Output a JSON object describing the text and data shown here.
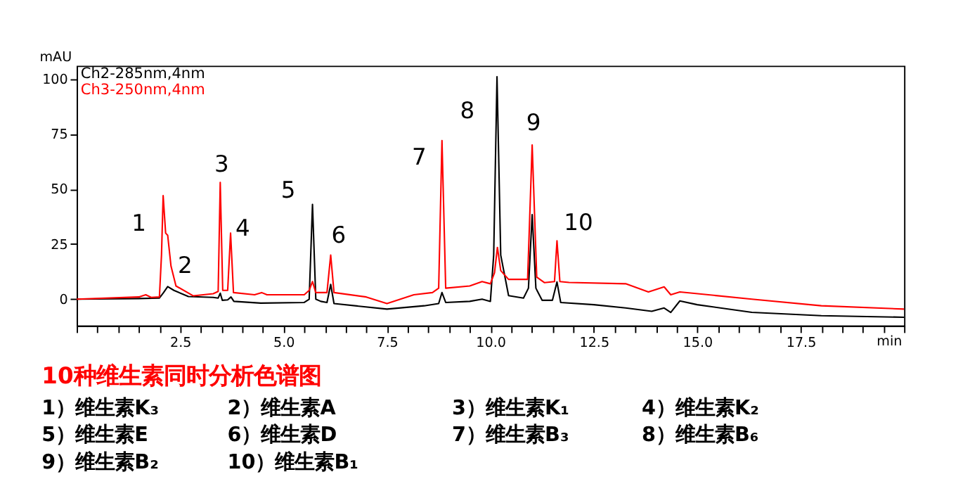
{
  "chart_data": {
    "type": "line",
    "title": "10种维生素同时分析色谱图",
    "xlabel": "min",
    "ylabel": "mAU",
    "xlim": [
      0,
      20
    ],
    "ylim": [
      -12,
      106
    ],
    "xticks": [
      {
        "value": 0,
        "label": null
      },
      {
        "value": 0.5,
        "label": null
      },
      {
        "value": 1,
        "label": null
      },
      {
        "value": 1.5,
        "label": null
      },
      {
        "value": 2,
        "label": null
      },
      {
        "value": 2.5,
        "label": "2.5"
      },
      {
        "value": 3,
        "label": null
      },
      {
        "value": 3.5,
        "label": null
      },
      {
        "value": 4,
        "label": null
      },
      {
        "value": 4.5,
        "label": null
      },
      {
        "value": 5,
        "label": "5.0"
      },
      {
        "value": 5.5,
        "label": null
      },
      {
        "value": 6,
        "label": null
      },
      {
        "value": 6.5,
        "label": null
      },
      {
        "value": 7,
        "label": null
      },
      {
        "value": 7.5,
        "label": "7.5"
      },
      {
        "value": 8,
        "label": null
      },
      {
        "value": 8.5,
        "label": null
      },
      {
        "value": 9,
        "label": null
      },
      {
        "value": 9.5,
        "label": null
      },
      {
        "value": 10,
        "label": "10.0"
      },
      {
        "value": 10.5,
        "label": null
      },
      {
        "value": 11,
        "label": null
      },
      {
        "value": 11.5,
        "label": null
      },
      {
        "value": 12,
        "label": null
      },
      {
        "value": 12.5,
        "label": "12.5"
      },
      {
        "value": 13,
        "label": null
      },
      {
        "value": 13.5,
        "label": null
      },
      {
        "value": 14,
        "label": null
      },
      {
        "value": 14.5,
        "label": null
      },
      {
        "value": 15,
        "label": "15.0"
      },
      {
        "value": 15.5,
        "label": null
      },
      {
        "value": 16,
        "label": null
      },
      {
        "value": 16.5,
        "label": null
      },
      {
        "value": 17,
        "label": null
      },
      {
        "value": 17.5,
        "label": "17.5"
      },
      {
        "value": 18,
        "label": null
      },
      {
        "value": 18.5,
        "label": null
      },
      {
        "value": 19,
        "label": null
      },
      {
        "value": 19.5,
        "label": null
      },
      {
        "value": 20,
        "label": null
      }
    ],
    "yticks": [
      0,
      25,
      50,
      75,
      100
    ],
    "grid": false,
    "legend": "top left",
    "marker": "none",
    "line_style": "solid",
    "series": [
      {
        "name": "Ch2-285nm,4nm",
        "color": "#000000",
        "x": [
          0,
          1.5,
          2.0,
          2.1,
          2.2,
          2.35,
          2.7,
          3.3,
          3.42,
          3.47,
          3.52,
          3.65,
          3.73,
          3.8,
          4.45,
          5.5,
          5.62,
          5.7,
          5.78,
          5.9,
          6.05,
          6.14,
          6.22,
          7.5,
          8.4,
          8.75,
          8.83,
          8.92,
          9.5,
          9.8,
          10.0,
          10.08,
          10.16,
          10.25,
          10.44,
          10.8,
          10.92,
          11.01,
          11.1,
          11.25,
          11.5,
          11.61,
          11.7,
          12.5,
          13.27,
          13.9,
          14.2,
          14.36,
          14.58,
          15.0,
          16.32,
          18,
          20
        ],
        "values": [
          0,
          0.3,
          0.5,
          3,
          5.7,
          4,
          1.2,
          0.8,
          0.5,
          2.7,
          -0.5,
          -0.3,
          1,
          -1,
          -1.8,
          -1.5,
          0,
          43,
          0,
          -1,
          -1.5,
          6.7,
          -2,
          -4.5,
          -3,
          -2,
          3,
          -1.5,
          -1,
          0,
          -1,
          20,
          101,
          20,
          1.6,
          0.5,
          5,
          38.4,
          5,
          -0.5,
          -0.5,
          7.8,
          -1.5,
          -2.5,
          -4,
          -5.5,
          -4,
          -6,
          -0.8,
          -2.5,
          -6,
          -7.5,
          -8.2
        ]
      },
      {
        "name": "Ch3-250nm,4nm",
        "color": "#ff0000",
        "x": [
          0,
          1.5,
          1.67,
          1.8,
          2.0,
          2.05,
          2.09,
          2.15,
          2.2,
          2.28,
          2.4,
          2.82,
          3.3,
          3.42,
          3.47,
          3.53,
          3.65,
          3.72,
          3.79,
          4.3,
          4.47,
          4.6,
          5.5,
          5.62,
          5.7,
          5.78,
          6.05,
          6.14,
          6.22,
          7.0,
          7.5,
          8.15,
          8.6,
          8.75,
          8.83,
          8.92,
          9.5,
          9.8,
          10.0,
          10.1,
          10.17,
          10.25,
          10.44,
          10.9,
          11.01,
          11.12,
          11.31,
          11.55,
          11.61,
          11.68,
          11.9,
          13.27,
          13.82,
          14.2,
          14.36,
          14.58,
          16.32,
          18,
          20
        ],
        "values": [
          0,
          1,
          2,
          0.8,
          1,
          20,
          47,
          30,
          29,
          15,
          6,
          1.5,
          2.5,
          3.5,
          53,
          4,
          4,
          30,
          3,
          2,
          3,
          2,
          2,
          4,
          8,
          3,
          3,
          20,
          3,
          1,
          -2,
          2,
          3,
          5,
          72,
          5,
          6,
          8,
          7,
          12,
          23.5,
          13,
          9,
          9,
          70,
          10,
          7.5,
          8,
          26.5,
          8,
          7.6,
          7,
          3.3,
          5.6,
          2,
          3.3,
          0,
          -3,
          -4.5
        ]
      }
    ],
    "annotations": [
      {
        "text": "1",
        "x": 2.09,
        "y": 47
      },
      {
        "text": "2",
        "x": 2.2,
        "y": 5.7
      },
      {
        "text": "3",
        "x": 3.47,
        "y": 53
      },
      {
        "text": "4",
        "x": 3.72,
        "y": 30
      },
      {
        "text": "5",
        "x": 5.7,
        "y": 43
      },
      {
        "text": "6",
        "x": 6.14,
        "y": 20
      },
      {
        "text": "7",
        "x": 8.83,
        "y": 72
      },
      {
        "text": "8",
        "x": 10.16,
        "y": 101
      },
      {
        "text": "9",
        "x": 11.01,
        "y": 70
      },
      {
        "text": "10",
        "x": 11.61,
        "y": 26.5
      },
      "1）维生素K₃",
      "2）维生素A",
      "3）维生素K₁",
      "4）维生素K₂",
      "5）维生素E",
      "6）维生素D",
      "7）维生素B₃",
      "8）维生素B₆",
      "9）维生素B₂",
      "10）维生素B₁"
    ]
  }
}
